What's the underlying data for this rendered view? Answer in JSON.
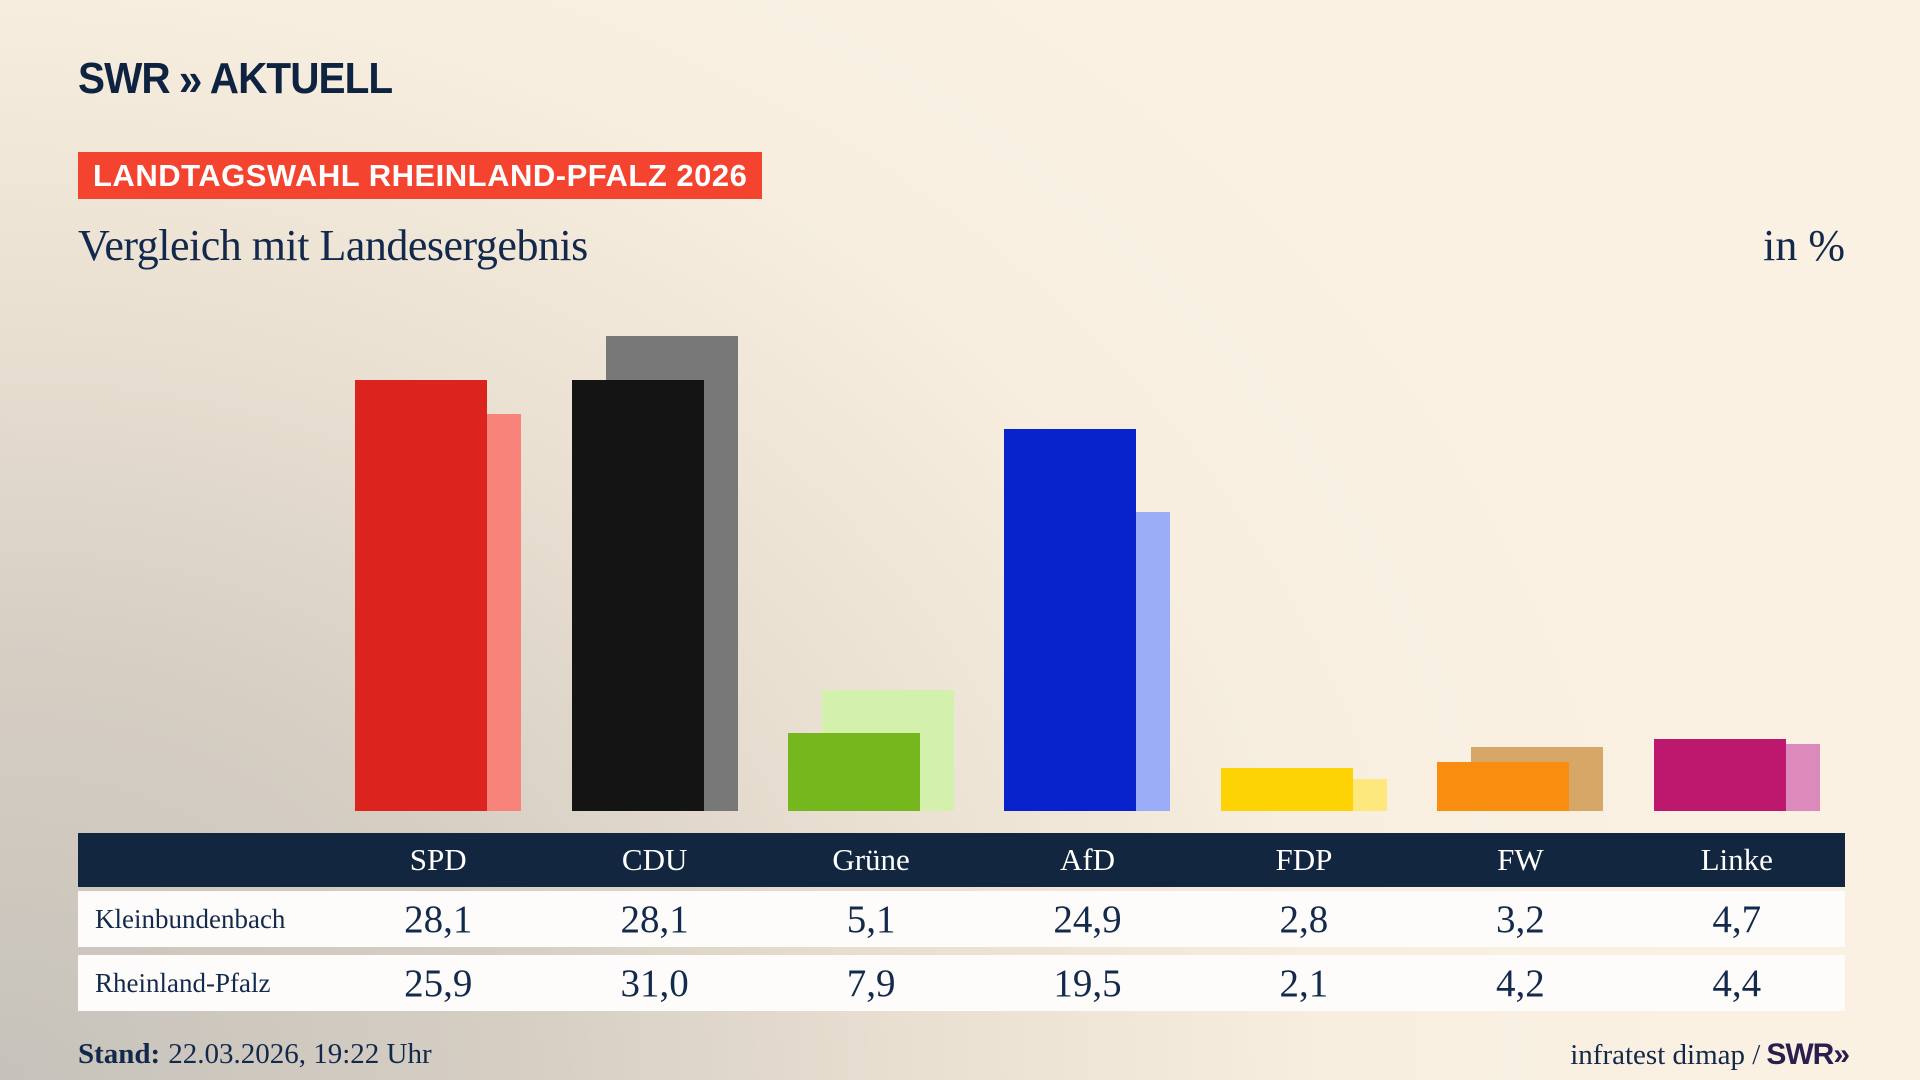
{
  "brand": {
    "swr": "SWR",
    "chevrons": "»",
    "aktuell": "AKTUELL"
  },
  "header": {
    "badge": "LANDTAGSWAHL RHEINLAND-PFALZ 2026",
    "title": "Vergleich mit Landesergebnis",
    "unit": "in %"
  },
  "colors": {
    "badge_red": "#f4432f",
    "navy": "#13294b",
    "table_header": "#13263f",
    "table_row_bg": "#fdfcfa"
  },
  "parties": [
    {
      "name": "SPD",
      "color": "#dc241f",
      "light": "#f8837b"
    },
    {
      "name": "CDU",
      "color": "#141414",
      "light": "#787878"
    },
    {
      "name": "Grüne",
      "color": "#77b71e",
      "light": "#d3f0ad"
    },
    {
      "name": "AfD",
      "color": "#0823cc",
      "light": "#9cadf8"
    },
    {
      "name": "FDP",
      "color": "#fdd305",
      "light": "#fce87d"
    },
    {
      "name": "FW",
      "color": "#f98d0f",
      "light": "#d7a768"
    },
    {
      "name": "Linke",
      "color": "#be186e",
      "light": "#dc8abc"
    }
  ],
  "chart_data": {
    "type": "bar",
    "title": "Vergleich mit Landesergebnis",
    "unit": "in %",
    "categories": [
      "SPD",
      "CDU",
      "Grüne",
      "AfD",
      "FDP",
      "FW",
      "Linke"
    ],
    "series": [
      {
        "name": "Kleinbundenbach",
        "values": [
          28.1,
          28.1,
          5.1,
          24.9,
          2.8,
          3.2,
          4.7
        ]
      },
      {
        "name": "Rheinland-Pfalz",
        "values": [
          25.9,
          31.0,
          7.9,
          19.5,
          2.1,
          4.2,
          4.4
        ]
      }
    ],
    "ylim": [
      0,
      33
    ],
    "grid": false,
    "legend_position": "table-below"
  },
  "table": {
    "corner": "",
    "columns": [
      "SPD",
      "CDU",
      "Grüne",
      "AfD",
      "FDP",
      "FW",
      "Linke"
    ],
    "rows": [
      {
        "label": "Kleinbundenbach",
        "values": [
          "28,1",
          "28,1",
          "5,1",
          "24,9",
          "2,8",
          "3,2",
          "4,7"
        ]
      },
      {
        "label": "Rheinland-Pfalz",
        "values": [
          "25,9",
          "31,0",
          "7,9",
          "19,5",
          "2,1",
          "4,2",
          "4,4"
        ]
      }
    ]
  },
  "footer": {
    "stand_label": "Stand:",
    "stand_value": "22.03.2026, 19:22 Uhr",
    "source": "infratest dimap /",
    "source_brand": "SWR",
    "source_chevrons": "»"
  }
}
